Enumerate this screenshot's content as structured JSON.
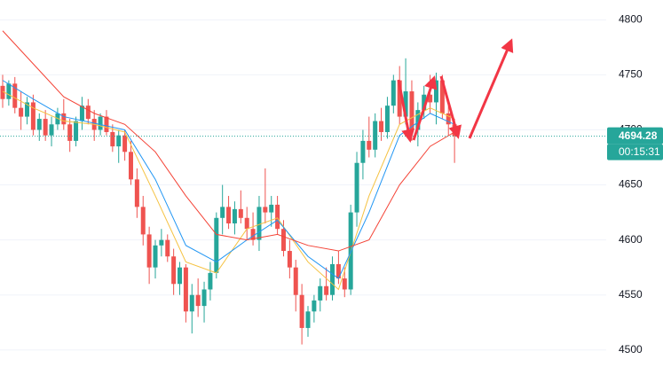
{
  "chart_data": {
    "type": "candlestick",
    "ylim": [
      4470,
      4818
    ],
    "yticks": [
      4500,
      4550,
      4600,
      4650,
      4700,
      4750,
      4800
    ],
    "grid": true,
    "up_color": "#26a69a",
    "down_color": "#ef5350",
    "open": [
      4740,
      4728,
      4742,
      4720,
      4712,
      4725,
      4700,
      4710,
      4695,
      4705,
      4715,
      4705,
      4690,
      4708,
      4722,
      4710,
      4700,
      4712,
      4698,
      4685,
      4695,
      4680,
      4655,
      4630,
      4605,
      4575,
      4595,
      4600,
      4585,
      4560,
      4575,
      4535,
      4550,
      4540,
      4555,
      4570,
      4620,
      4630,
      4615,
      4628,
      4620,
      4610,
      4600,
      4630,
      4625,
      4632,
      4610,
      4590,
      4575,
      4550,
      4520,
      4535,
      4545,
      4558,
      4550,
      4578,
      4565,
      4555,
      4625,
      4670,
      4690,
      4682,
      4708,
      4698,
      4722,
      4745,
      4712,
      4735,
      4700,
      4718,
      4732,
      4725,
      4745,
      4715,
      4705
    ],
    "high": [
      4750,
      4745,
      4748,
      4735,
      4730,
      4732,
      4715,
      4718,
      4712,
      4720,
      4728,
      4710,
      4712,
      4730,
      4728,
      4718,
      4715,
      4718,
      4705,
      4700,
      4700,
      4690,
      4665,
      4640,
      4612,
      4600,
      4610,
      4605,
      4592,
      4580,
      4578,
      4560,
      4565,
      4562,
      4580,
      4625,
      4650,
      4640,
      4635,
      4645,
      4630,
      4625,
      4640,
      4665,
      4640,
      4640,
      4618,
      4600,
      4582,
      4560,
      4540,
      4550,
      4565,
      4575,
      4585,
      4590,
      4575,
      4632,
      4680,
      4700,
      4712,
      4715,
      4720,
      4730,
      4750,
      4758,
      4765,
      4745,
      4725,
      4740,
      4750,
      4752,
      4750,
      4722,
      4710
    ],
    "low": [
      4720,
      4722,
      4715,
      4700,
      4705,
      4695,
      4690,
      4690,
      4685,
      4700,
      4700,
      4680,
      4685,
      4700,
      4705,
      4690,
      4695,
      4695,
      4680,
      4670,
      4672,
      4650,
      4620,
      4595,
      4560,
      4565,
      4585,
      4580,
      4550,
      4550,
      4525,
      4515,
      4530,
      4525,
      4545,
      4565,
      4605,
      4610,
      4605,
      4615,
      4600,
      4595,
      4590,
      4615,
      4612,
      4605,
      4585,
      4565,
      4535,
      4505,
      4512,
      4525,
      4535,
      4545,
      4545,
      4560,
      4548,
      4550,
      4612,
      4655,
      4675,
      4675,
      4690,
      4692,
      4715,
      4705,
      4705,
      4690,
      4685,
      4710,
      4715,
      4705,
      4710,
      4695,
      4670
    ],
    "close": [
      4728,
      4742,
      4720,
      4712,
      4725,
      4700,
      4710,
      4695,
      4705,
      4715,
      4705,
      4690,
      4708,
      4722,
      4710,
      4700,
      4712,
      4698,
      4685,
      4695,
      4680,
      4655,
      4630,
      4605,
      4575,
      4595,
      4600,
      4585,
      4560,
      4575,
      4535,
      4550,
      4540,
      4555,
      4570,
      4620,
      4630,
      4615,
      4628,
      4620,
      4610,
      4600,
      4630,
      4625,
      4632,
      4610,
      4590,
      4575,
      4550,
      4520,
      4535,
      4545,
      4558,
      4550,
      4578,
      4565,
      4555,
      4625,
      4670,
      4690,
      4682,
      4708,
      4698,
      4722,
      4745,
      4712,
      4735,
      4700,
      4718,
      4732,
      4725,
      4745,
      4715,
      4705,
      4694.28
    ],
    "moving_averages": [
      {
        "color": "#f5c242",
        "x": [
          0,
          5,
          10,
          15,
          20,
          25,
          30,
          35,
          40,
          45,
          50,
          55,
          60,
          65,
          70,
          74
        ],
        "values": [
          4735,
          4720,
          4708,
          4705,
          4698,
          4640,
          4580,
          4570,
          4610,
          4620,
          4580,
          4555,
          4640,
          4705,
          4720,
          4710
        ]
      },
      {
        "color": "#2196f3",
        "x": [
          0,
          5,
          10,
          15,
          20,
          25,
          30,
          35,
          40,
          45,
          50,
          55,
          60,
          65,
          70,
          74
        ],
        "values": [
          4745,
          4728,
          4712,
          4706,
          4700,
          4655,
          4595,
          4580,
          4600,
          4618,
          4585,
          4565,
          4625,
          4695,
          4715,
          4705
        ]
      },
      {
        "color": "#f44336",
        "x": [
          0,
          5,
          10,
          15,
          20,
          25,
          30,
          35,
          40,
          45,
          50,
          55,
          60,
          65,
          70,
          74
        ],
        "values": [
          4790,
          4760,
          4730,
          4715,
          4705,
          4680,
          4640,
          4605,
          4600,
          4605,
          4595,
          4590,
          4600,
          4650,
          4685,
          4698
        ]
      }
    ],
    "last_price": {
      "value": 4694.28,
      "countdown": "00:15:31",
      "color": "#26a69a"
    }
  }
}
